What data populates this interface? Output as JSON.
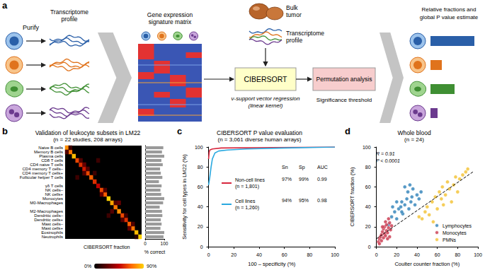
{
  "diagram": {
    "panel": "a",
    "purify": "Purify",
    "profile_label": [
      "Transcriptome",
      "profile"
    ],
    "matrix_label": [
      "Gene expression",
      "signature matrix"
    ],
    "sample_label": [
      "Bulk",
      "tumor"
    ],
    "sample_profile_label": [
      "Transcriptome",
      "profile"
    ],
    "method_box": "CIBERSORT",
    "method_note": [
      "ν-support vector regression",
      "(linear kernel)"
    ],
    "test_box": "Permutation analysis",
    "test_note": "Significance threshold",
    "output_label": [
      "Relative fractions and",
      "global P value estimate"
    ]
  },
  "chart_data": [
    {
      "panel": "b",
      "type": "heatmap",
      "title": "Validation of leukocyte subsets in LM22",
      "subtitle": "(n = 22 studies, 208 arrays)",
      "categories": [
        "Naive B cells",
        "Memory B cells",
        "Plasma cells",
        "CD8 T cells",
        "CD4 naive T cells",
        "CD4 memory T cells–",
        "CD4 memory T cells+",
        "Follicular helper T cells",
        null,
        "γδ T cells",
        "NK cells–",
        "NK cells+",
        "Monocytes",
        "M0-Macrophages",
        null,
        "M2-Macrophages",
        "Dendritic cells–",
        "Dendritic cells+",
        "Mast cells–",
        "Mast cells+",
        "Eosinophils",
        "Neutrophils"
      ],
      "tick_labels": "y",
      "cells": [
        [
          0,
          0,
          75
        ],
        [
          1,
          1,
          70
        ],
        [
          2,
          2,
          85
        ],
        [
          3,
          3,
          60
        ],
        [
          4,
          4,
          55
        ],
        [
          5,
          5,
          50
        ],
        [
          6,
          6,
          60
        ],
        [
          7,
          7,
          65
        ],
        [
          8,
          8,
          55
        ],
        [
          9,
          9,
          45
        ],
        [
          10,
          10,
          60
        ],
        [
          11,
          11,
          65
        ],
        [
          12,
          12,
          90
        ],
        [
          13,
          13,
          80
        ],
        [
          14,
          14,
          70
        ],
        [
          15,
          15,
          75
        ],
        [
          16,
          16,
          60
        ],
        [
          17,
          17,
          55
        ],
        [
          18,
          18,
          65
        ],
        [
          19,
          19,
          70
        ],
        [
          20,
          20,
          85
        ],
        [
          21,
          21,
          90
        ],
        [
          0,
          1,
          20
        ],
        [
          1,
          0,
          15
        ],
        [
          4,
          3,
          20
        ],
        [
          5,
          4,
          25
        ],
        [
          5,
          6,
          20
        ],
        [
          6,
          5,
          20
        ],
        [
          3,
          7,
          15
        ],
        [
          8,
          6,
          15
        ],
        [
          10,
          11,
          25
        ],
        [
          11,
          10,
          20
        ],
        [
          9,
          3,
          15
        ],
        [
          13,
          15,
          20
        ],
        [
          14,
          13,
          20
        ],
        [
          15,
          13,
          25
        ],
        [
          12,
          16,
          15
        ],
        [
          16,
          17,
          20
        ],
        [
          17,
          16,
          15
        ],
        [
          18,
          19,
          25
        ],
        [
          19,
          18,
          20
        ],
        [
          20,
          21,
          10
        ]
      ],
      "colorbar": {
        "label": "CIBERSORT fraction",
        "range": [
          0,
          90
        ],
        "ticks": [
          {
            "value": 0,
            "label": "0%"
          },
          {
            "value": 90,
            "label": "90%"
          }
        ]
      },
      "side_bars": {
        "label": "% correct",
        "color": "#9a9a9a",
        "xlim": [
          0,
          100
        ],
        "xticks": [
          0,
          100
        ],
        "values": [
          95,
          88,
          100,
          85,
          92,
          78,
          82,
          90,
          72,
          86,
          80,
          84,
          100,
          94,
          76,
          88,
          90,
          82,
          86,
          80,
          100,
          96
        ]
      }
    },
    {
      "panel": "c",
      "type": "line",
      "title": "CIBERSORT P value evaluation",
      "subtitle": "(n = 3,061 diverse human arrays)",
      "x_label": "100 – specificity (%)",
      "y_label": "Sensitivity for cell types in LM22 (%)",
      "xlim": [
        0,
        100
      ],
      "ylim": [
        0,
        100
      ],
      "xticks": [
        0,
        20,
        40,
        60,
        80,
        100
      ],
      "yticks": [
        0,
        20,
        40,
        60,
        80,
        100
      ],
      "grid": false,
      "marker": "none",
      "legend": "lower left",
      "series": [
        {
          "name": "Non-cell lines",
          "n_label": "(n = 1,801)",
          "color": "#d7263d",
          "x": [
            0,
            0.5,
            1,
            3,
            10,
            50,
            100
          ],
          "y": [
            88,
            95,
            97,
            98,
            99,
            99.5,
            100
          ]
        },
        {
          "name": "Cell lines",
          "n_label": "(n = 1,260)",
          "color": "#2aa9e0",
          "x": [
            0,
            1,
            2,
            3,
            5,
            8,
            15,
            30,
            60,
            100
          ],
          "y": [
            62,
            70,
            80,
            88,
            94,
            96,
            97,
            98,
            99,
            100
          ]
        }
      ],
      "stats": {
        "columns": [
          "Sn",
          "Sp",
          "AUC"
        ],
        "rows": [
          [
            "97%",
            "99%",
            "0.99"
          ],
          [
            "94%",
            "95%",
            "0.98"
          ]
        ]
      }
    },
    {
      "panel": "d",
      "type": "scatter",
      "title": "Whole blood",
      "subtitle": "(n = 24)",
      "x_label": "Coulter counter fraction (%)",
      "y_label": "CIBERSORT fraction (%)",
      "xlim": [
        0,
        100
      ],
      "ylim": [
        0,
        100
      ],
      "xticks": [
        0,
        20,
        40,
        60,
        80,
        100
      ],
      "yticks": [
        0,
        20,
        40,
        60,
        80,
        100
      ],
      "grid": false,
      "legend": "lower right",
      "annotations": [
        "R = 0.91",
        "P < 0.0001"
      ],
      "series": [
        {
          "name": "Lymphocytes",
          "color": "#2c7fb8",
          "points": [
            [
              12,
              22
            ],
            [
              15,
              30
            ],
            [
              18,
              35
            ],
            [
              20,
              28
            ],
            [
              22,
              38
            ],
            [
              24,
              40
            ],
            [
              25,
              45
            ],
            [
              26,
              33
            ],
            [
              28,
              42
            ],
            [
              30,
              48
            ],
            [
              31,
              55
            ],
            [
              32,
              38
            ],
            [
              34,
              45
            ],
            [
              35,
              50
            ],
            [
              36,
              58
            ],
            [
              38,
              42
            ],
            [
              40,
              52
            ],
            [
              42,
              48
            ],
            [
              20,
              45
            ],
            [
              28,
              60
            ],
            [
              33,
              62
            ],
            [
              44,
              55
            ],
            [
              16,
              40
            ],
            [
              25,
              35
            ]
          ]
        },
        {
          "name": "Monocytes",
          "color": "#c8334a",
          "points": [
            [
              2,
              5
            ],
            [
              3,
              8
            ],
            [
              4,
              10
            ],
            [
              5,
              6
            ],
            [
              5,
              12
            ],
            [
              6,
              15
            ],
            [
              7,
              9
            ],
            [
              7,
              18
            ],
            [
              8,
              13
            ],
            [
              8,
              20
            ],
            [
              9,
              11
            ],
            [
              9,
              25
            ],
            [
              10,
              16
            ],
            [
              10,
              22
            ],
            [
              11,
              14
            ],
            [
              12,
              19
            ],
            [
              12,
              28
            ],
            [
              13,
              10
            ],
            [
              14,
              17
            ],
            [
              15,
              21
            ],
            [
              6,
              20
            ],
            [
              3,
              3
            ],
            [
              11,
              8
            ],
            [
              13,
              24
            ]
          ]
        },
        {
          "name": "PMNs",
          "color": "#f2c12e",
          "points": [
            [
              42,
              30
            ],
            [
              45,
              28
            ],
            [
              48,
              35
            ],
            [
              50,
              40
            ],
            [
              52,
              32
            ],
            [
              55,
              45
            ],
            [
              58,
              50
            ],
            [
              60,
              38
            ],
            [
              62,
              55
            ],
            [
              64,
              48
            ],
            [
              65,
              60
            ],
            [
              68,
              52
            ],
            [
              70,
              65
            ],
            [
              72,
              58
            ],
            [
              74,
              45
            ],
            [
              76,
              62
            ],
            [
              78,
              70
            ],
            [
              80,
              55
            ],
            [
              82,
              68
            ],
            [
              85,
              72
            ],
            [
              88,
              75
            ],
            [
              90,
              78
            ],
            [
              56,
              25
            ],
            [
              66,
              42
            ]
          ]
        }
      ],
      "fit_line": {
        "x": [
          0,
          95
        ],
        "y": [
          8,
          75
        ],
        "line_style": "dashed",
        "color": "#000000"
      }
    }
  ]
}
